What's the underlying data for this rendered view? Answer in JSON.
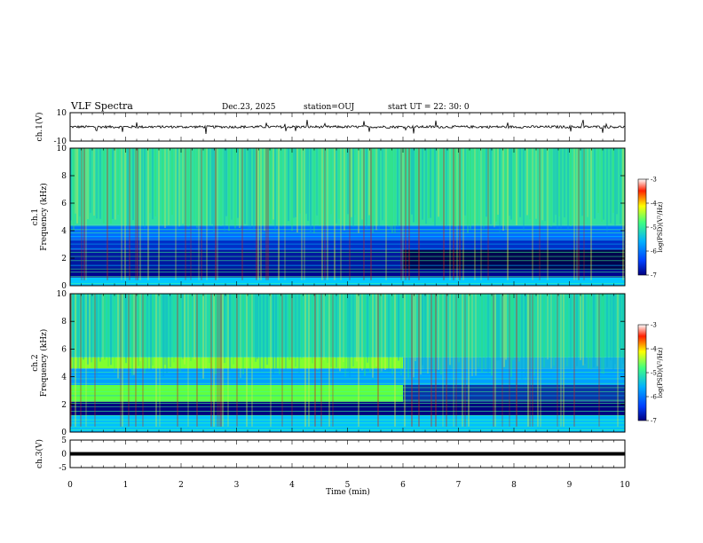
{
  "header": {
    "title": "VLF Spectra",
    "date": "Dec.23, 2025",
    "station": "station=OUJ",
    "start": "start  UT =   22: 30: 0"
  },
  "colorbar": {
    "label": "log(PSD)(V²/Hz)",
    "ticks": [
      "-3",
      "-4",
      "-5",
      "-6",
      "-7"
    ],
    "range": [
      -7,
      -3
    ],
    "colors": [
      "#000080",
      "#0040ff",
      "#00b0ff",
      "#40ff80",
      "#ffff00",
      "#ff2000",
      "#ffffff"
    ]
  },
  "chart_data": [
    {
      "type": "line",
      "name": "ch1-waveform",
      "ylabel": "ch.1(V)",
      "ylim": [
        -10,
        10
      ],
      "ytick_labels": [
        "10",
        "-10"
      ],
      "xlim": [
        0,
        10
      ],
      "baseline_value": 0,
      "description_values": {
        "noise_amplitude": 1,
        "spike_amplitude": 5
      }
    },
    {
      "type": "heatmap",
      "name": "ch1-spectrogram",
      "ylabel": "ch.1\nFrequency (kHz)",
      "ylim": [
        0,
        10
      ],
      "ytick_labels": [
        "0",
        "2",
        "4",
        "6",
        "8",
        "10"
      ],
      "xlim": [
        0,
        10
      ],
      "bands": [
        {
          "f_low": 0,
          "f_high": 0.6,
          "level": -5.0,
          "color": "#00c8ff"
        },
        {
          "f_low": 0.6,
          "f_high": 1.2,
          "level": -6.5,
          "color": "#000090"
        },
        {
          "f_low": 1.2,
          "f_high": 2.6,
          "level": -6.2,
          "color": "#0018a0"
        },
        {
          "f_low": 2.6,
          "f_high": 3.4,
          "level": -6.0,
          "color": "#0030c8"
        },
        {
          "f_low": 3.4,
          "f_high": 4.4,
          "level": -5.5,
          "color": "#0070ff"
        },
        {
          "f_low": 4.4,
          "f_high": 10,
          "level": -4.8,
          "color": "#30e0a0"
        }
      ],
      "change_time": 6.0
    },
    {
      "type": "heatmap",
      "name": "ch2-spectrogram",
      "ylabel": "ch.2\nFrequency (kHz)",
      "ylim": [
        0,
        10
      ],
      "ytick_labels": [
        "0",
        "2",
        "4",
        "6",
        "8",
        "10"
      ],
      "xlim": [
        0,
        10
      ],
      "bands": [
        {
          "f_low": 0,
          "f_high": 1.2,
          "level": -5.2,
          "color": "#00c0ff"
        },
        {
          "f_low": 1.2,
          "f_high": 2.2,
          "level": -6.6,
          "color": "#000080"
        },
        {
          "f_low": 2.2,
          "f_high": 3.4,
          "level": -4.6,
          "color": "#60ff40"
        },
        {
          "f_low": 3.4,
          "f_high": 4.6,
          "level": -5.3,
          "color": "#00a0ff"
        },
        {
          "f_low": 4.6,
          "f_high": 5.4,
          "level": -4.5,
          "color": "#80ff30"
        },
        {
          "f_low": 5.4,
          "f_high": 10,
          "level": -4.9,
          "color": "#20d8b0"
        }
      ],
      "change_time": 6.0
    },
    {
      "type": "line",
      "name": "ch3-trace",
      "ylabel": "ch.3(V)",
      "ylim": [
        -5,
        5
      ],
      "ytick_labels": [
        "5",
        "0",
        "-5"
      ],
      "xlim": [
        0,
        10
      ],
      "baseline_value": 0
    }
  ],
  "xaxis": {
    "label": "Time (min)",
    "ticks": [
      "0",
      "1",
      "2",
      "3",
      "4",
      "5",
      "6",
      "7",
      "8",
      "9",
      "10"
    ]
  }
}
